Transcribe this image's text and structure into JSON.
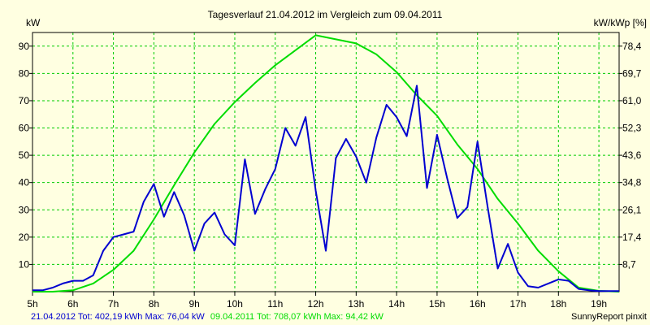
{
  "chart_data": {
    "type": "line",
    "title": "Tagesverlauf 21.04.2012 im Vergleich zum 09.04.2011",
    "ylabel_left": "kW",
    "ylabel_right": "kW/kWp [%]",
    "xlabel": "",
    "xlim": [
      5.0,
      19.5
    ],
    "ylim_left": [
      0,
      95
    ],
    "ylim_right": [
      0,
      82.6
    ],
    "grid": true,
    "x_tick_values": [
      5,
      6,
      7,
      8,
      9,
      10,
      11,
      12,
      13,
      14,
      15,
      16,
      17,
      18,
      19
    ],
    "x_tick_labels": [
      "5h",
      "6h",
      "7h",
      "8h",
      "9h",
      "10h",
      "11h",
      "12h",
      "13h",
      "14h",
      "15h",
      "16h",
      "17h",
      "18h",
      "19h"
    ],
    "y_left_tick_values": [
      10,
      20,
      30,
      40,
      50,
      60,
      70,
      80,
      90
    ],
    "y_left_tick_labels": [
      "10",
      "20",
      "30",
      "40",
      "50",
      "60",
      "70",
      "80",
      "90"
    ],
    "y_right_tick_labels": [
      "8,7",
      "17,4",
      "26,1",
      "34,8",
      "43,6",
      "52,3",
      "61,0",
      "69,7",
      "78,4"
    ],
    "series": [
      {
        "name": "21.04.2012",
        "color": "#0000d0",
        "x": [
          5.0,
          5.25,
          5.5,
          5.75,
          6.0,
          6.25,
          6.5,
          6.75,
          7.0,
          7.25,
          7.5,
          7.75,
          8.0,
          8.25,
          8.5,
          8.75,
          9.0,
          9.25,
          9.5,
          9.75,
          10.0,
          10.25,
          10.5,
          10.75,
          11.0,
          11.25,
          11.5,
          11.75,
          12.0,
          12.25,
          12.5,
          12.75,
          13.0,
          13.25,
          13.5,
          13.75,
          14.0,
          14.25,
          14.5,
          14.75,
          15.0,
          15.25,
          15.5,
          15.75,
          16.0,
          16.25,
          16.5,
          16.75,
          17.0,
          17.25,
          17.5,
          17.75,
          18.0,
          18.25,
          18.5,
          18.75,
          19.0,
          19.25,
          19.5
        ],
        "values": [
          0.5,
          0.5,
          1.5,
          3,
          4,
          4,
          6,
          15,
          20,
          21,
          22,
          33,
          39.5,
          27.5,
          36.5,
          28,
          15,
          25,
          29,
          21,
          17,
          48.5,
          28.5,
          37.5,
          45,
          60,
          53.5,
          64,
          37,
          15,
          49,
          56,
          49.5,
          40,
          56.5,
          68.5,
          64,
          57,
          75.5,
          38,
          57.5,
          41.5,
          27,
          31,
          55,
          31,
          8.5,
          17.5,
          7,
          2,
          1.5,
          3,
          4.5,
          4,
          1,
          0.5,
          0.2,
          0.2,
          0.2
        ]
      },
      {
        "name": "09.04.2011",
        "color": "#00dc00",
        "x": [
          5.0,
          5.5,
          6.0,
          6.5,
          7.0,
          7.5,
          8.0,
          8.5,
          9.0,
          9.5,
          10.0,
          10.5,
          11.0,
          11.5,
          12.0,
          12.5,
          13.0,
          13.5,
          14.0,
          14.5,
          15.0,
          15.5,
          16.0,
          16.5,
          17.0,
          17.5,
          18.0,
          18.5,
          19.0,
          19.5
        ],
        "values": [
          0,
          0,
          0.5,
          3,
          8,
          15,
          26.5,
          39,
          51,
          61.5,
          69.5,
          76.5,
          83,
          88.5,
          94,
          92.5,
          91,
          87,
          80.5,
          72,
          64.5,
          54,
          45,
          34,
          25,
          15,
          7.5,
          1.5,
          0.3,
          0
        ]
      }
    ],
    "footer": {
      "summary_1": "21.04.2012 Tot: 402,19 kWh Max: 76,04 kW",
      "summary_2": "09.04.2011 Tot: 708,07 kWh Max: 94,42 kW",
      "summary_1_color": "#0000d0",
      "summary_2_color": "#00dc00",
      "credit": "SunnyReport pinxit"
    }
  }
}
